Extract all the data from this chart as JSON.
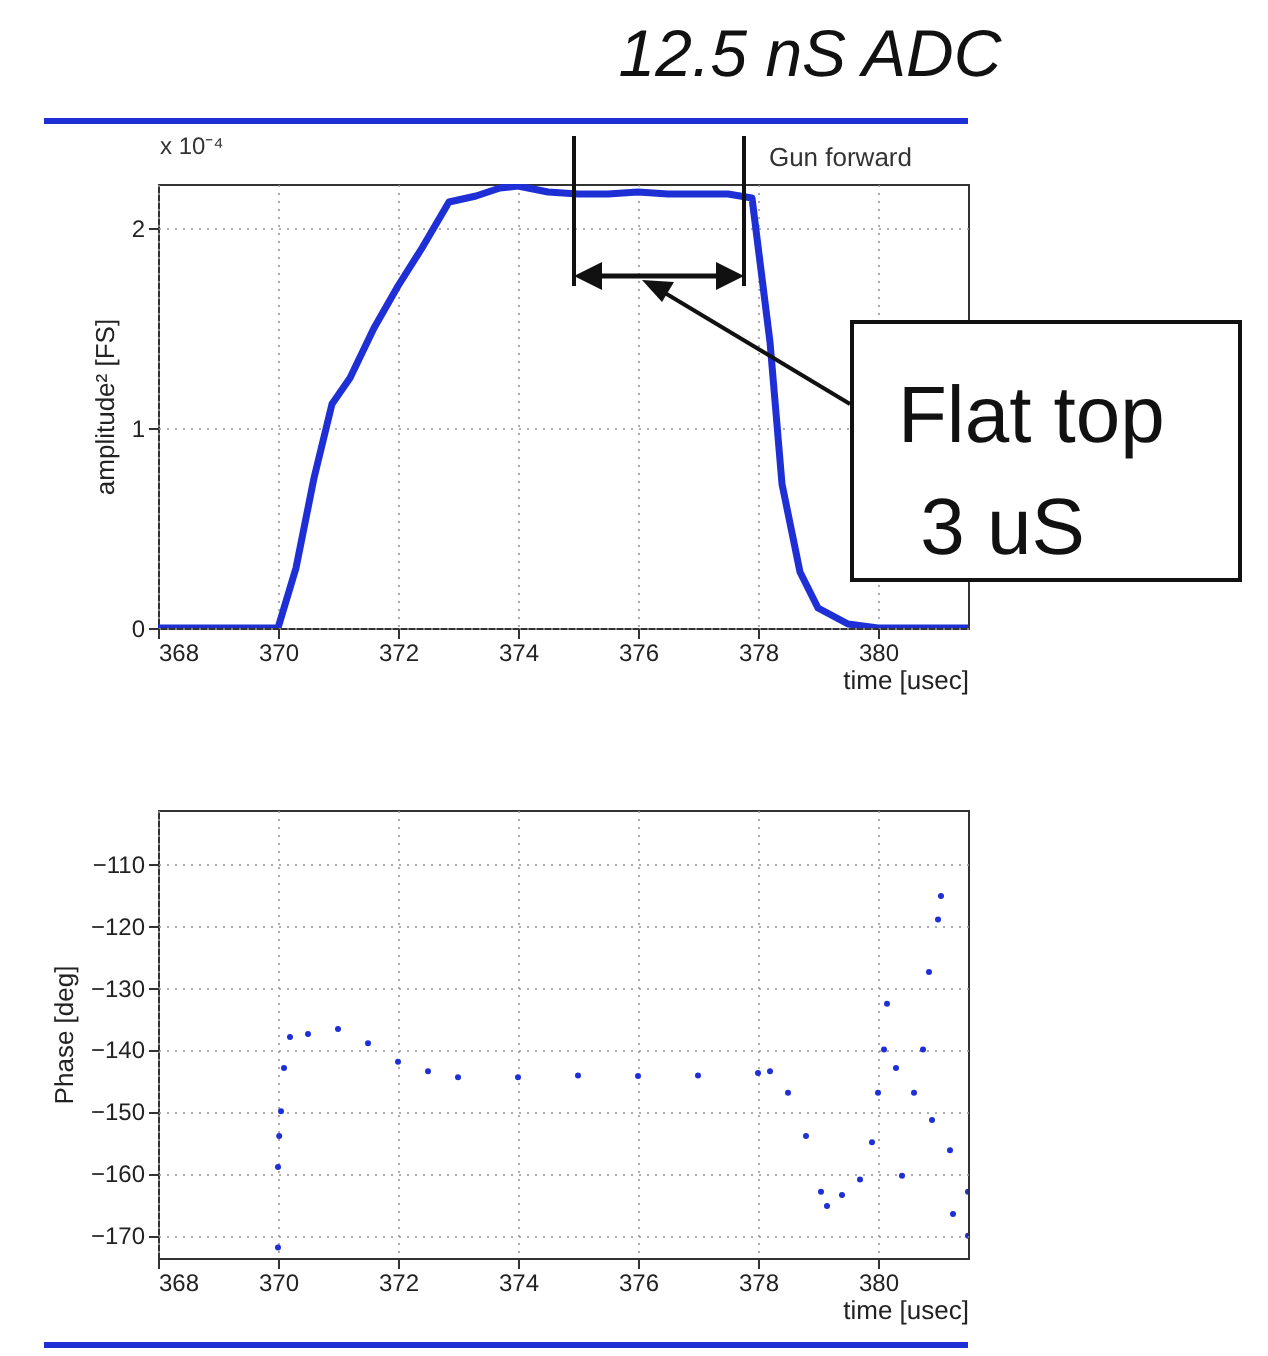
{
  "chart_data": [
    {
      "type": "line",
      "title": "Gun forward",
      "xlabel": "time [usec]",
      "ylabel": "amplitude² [FS]",
      "grid": true,
      "marker": "none",
      "line_style": "solid",
      "annotations": [
        "12.5 nS ADC",
        "Flat top\n 3 uS",
        "x 10⁻⁴"
      ],
      "xlim": [
        368,
        381.5
      ],
      "xticks": [
        368,
        370,
        372,
        374,
        376,
        378,
        380
      ],
      "ylim": [
        0,
        2.22
      ],
      "yticks": [
        0,
        1,
        2
      ],
      "x": [
        368,
        369,
        370,
        370.3,
        370.6,
        370.9,
        371.2,
        371.6,
        372,
        372.4,
        372.85,
        373.3,
        373.7,
        374,
        374.5,
        375,
        375.5,
        376,
        376.5,
        377,
        377.5,
        377.9,
        378.2,
        378.4,
        378.7,
        379,
        379.5,
        380,
        381,
        381.5
      ],
      "series": [
        {
          "color": "#1f2fd6",
          "values": [
            0,
            0,
            0,
            0.3,
            0.75,
            1.12,
            1.25,
            1.5,
            1.71,
            1.9,
            2.13,
            2.16,
            2.2,
            2.21,
            2.18,
            2.17,
            2.17,
            2.18,
            2.17,
            2.17,
            2.17,
            2.15,
            1.43,
            0.72,
            0.28,
            0.1,
            0.02,
            0,
            0,
            0
          ]
        }
      ]
    },
    {
      "type": "scatter",
      "xlabel": "time [usec]",
      "ylabel": "Phase [deg]",
      "grid": true,
      "marker": "circle",
      "xlim": [
        368,
        381.5
      ],
      "xticks": [
        368,
        370,
        372,
        374,
        376,
        378,
        380
      ],
      "ylim": [
        -173.7,
        -101.3
      ],
      "yticks": [
        -110,
        -120,
        -130,
        -140,
        -150,
        -160,
        -170
      ],
      "x": [
        370,
        370,
        370.02,
        370.05,
        370.1,
        370.2,
        370.5,
        371,
        371.5,
        372,
        372.5,
        373,
        374,
        375,
        376,
        377,
        378,
        378.2,
        378.5,
        378.8,
        379.05,
        379.15,
        379.4,
        379.7,
        379.9,
        380,
        380.1,
        380.15,
        380.3,
        380.4,
        380.6,
        380.75,
        380.85,
        380.9,
        381,
        381.05,
        381.2,
        381.25,
        381.5,
        381.5
      ],
      "series": [
        {
          "color": "#1f2fd6",
          "values": [
            -172,
            -159,
            -154,
            -150,
            -143,
            -138,
            -137.5,
            -136.7,
            -139,
            -142,
            -143.5,
            -144.5,
            -144.5,
            -144.2,
            -144.3,
            -144.2,
            -143.8,
            -143.5,
            -147,
            -154,
            -163,
            -165.3,
            -163.5,
            -161,
            -155,
            -147,
            -140,
            -132.6,
            -143,
            -160.4,
            -147,
            -140,
            -127.5,
            -151.4,
            -119,
            -115.2,
            -156.3,
            -166.6,
            -170.1,
            -163
          ]
        }
      ]
    }
  ]
}
